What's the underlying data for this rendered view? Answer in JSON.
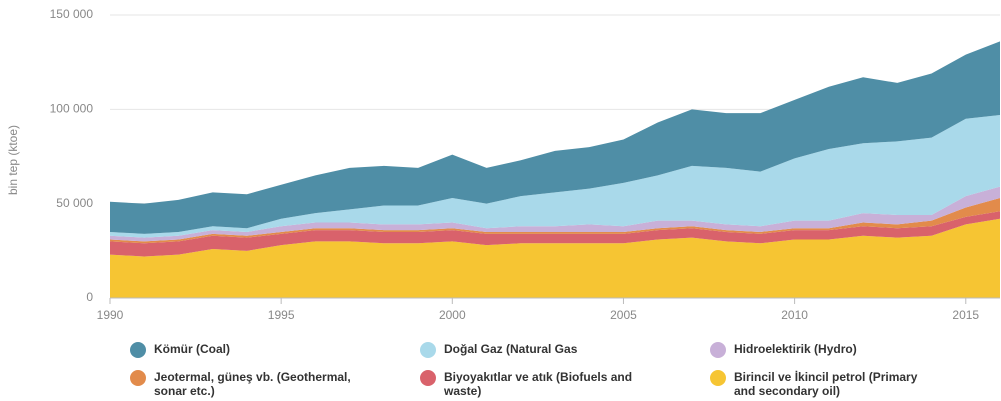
{
  "chart_data": {
    "type": "stacked_area",
    "y_label": "bin tep (ktoe)",
    "x": [
      1990,
      1991,
      1992,
      1993,
      1994,
      1995,
      1996,
      1997,
      1998,
      1999,
      2000,
      2001,
      2002,
      2003,
      2004,
      2005,
      2006,
      2007,
      2008,
      2009,
      2010,
      2011,
      2012,
      2013,
      2014,
      2015,
      2016
    ],
    "xlim": [
      1990,
      2016
    ],
    "xticks": [
      1990,
      1995,
      2000,
      2005,
      2010,
      2015
    ],
    "ylim": [
      0,
      150000
    ],
    "yticks": [
      0,
      {
        "value": 50000,
        "label": "50 000"
      },
      {
        "value": 100000,
        "label": "100 000"
      },
      {
        "value": 150000,
        "label": "150 000"
      }
    ],
    "grid": true,
    "series": [
      {
        "name": "Kömür (Coal)",
        "color": "#4f8ea6",
        "values": [
          16000,
          16000,
          17000,
          18000,
          18000,
          18000,
          20000,
          22000,
          21000,
          20000,
          23000,
          19000,
          19000,
          22000,
          22000,
          23000,
          28000,
          30000,
          29000,
          31000,
          31000,
          33000,
          35000,
          31000,
          34000,
          34000,
          39000
        ]
      },
      {
        "name": "Doğal Gaz (Natural Gas",
        "color": "#a9d9ea",
        "values": [
          2000,
          2000,
          2000,
          2000,
          2000,
          4000,
          5000,
          7000,
          10000,
          10000,
          13000,
          13000,
          16000,
          18000,
          19000,
          23000,
          24000,
          29000,
          30000,
          29000,
          33000,
          38000,
          37000,
          39000,
          41000,
          41000,
          38000
        ]
      },
      {
        "name": "Hidroelektirik (Hydro)",
        "color": "#c8b0d8",
        "values": [
          2000,
          2000,
          2000,
          2000,
          2000,
          3000,
          3000,
          3000,
          3000,
          3000,
          3000,
          2000,
          3000,
          3000,
          4000,
          3000,
          4000,
          3000,
          3000,
          3000,
          4000,
          4000,
          5000,
          5000,
          3000,
          6000,
          6000
        ]
      },
      {
        "name": "Jeotermal, güneş vb. (Geothermal, sonar etc.)",
        "color": "#e28b4b",
        "values": [
          1000,
          1000,
          1000,
          1000,
          1000,
          1000,
          1000,
          1000,
          1000,
          1000,
          1000,
          1000,
          1000,
          1000,
          1000,
          1000,
          1000,
          1000,
          1000,
          1000,
          1000,
          1000,
          2000,
          2000,
          3000,
          5000,
          7000
        ]
      },
      {
        "name": "Biyoyakıtlar ve atık (Biofuels and waste)",
        "color": "#d9626b",
        "values": [
          7000,
          7000,
          7000,
          7000,
          7000,
          6000,
          6000,
          6000,
          6000,
          6000,
          6000,
          6000,
          5000,
          5000,
          5000,
          5000,
          5000,
          5000,
          5000,
          5000,
          5000,
          5000,
          5000,
          5000,
          5000,
          4000,
          4000
        ]
      },
      {
        "name": "Birincil ve İkincil petrol (Primary and secondary oil)",
        "color": "#f6c533",
        "values": [
          23000,
          22000,
          23000,
          26000,
          25000,
          28000,
          30000,
          30000,
          29000,
          29000,
          30000,
          28000,
          29000,
          29000,
          29000,
          29000,
          31000,
          32000,
          30000,
          29000,
          31000,
          31000,
          33000,
          32000,
          33000,
          39000,
          42000
        ]
      }
    ]
  }
}
